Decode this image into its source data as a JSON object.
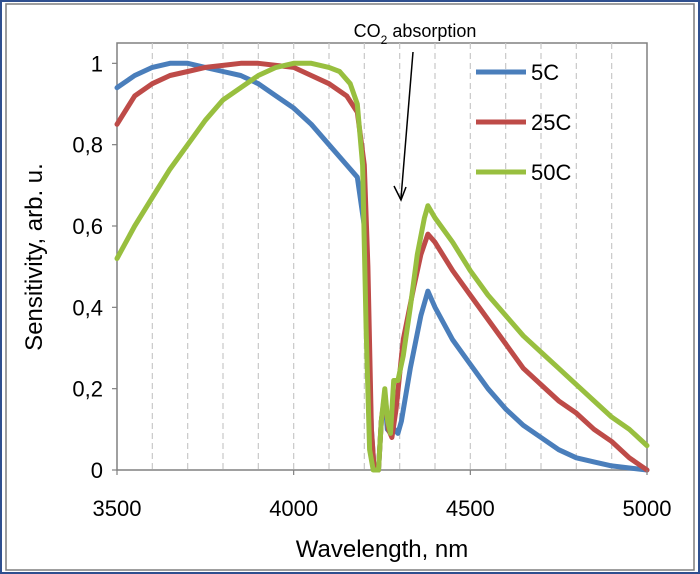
{
  "chart_data": {
    "type": "line",
    "xlabel": "Wavelength, nm",
    "ylabel": "Sensitivity, arb. u.",
    "xlim": [
      3500,
      5000
    ],
    "ylim": [
      0,
      1.05
    ],
    "x_ticks": [
      3500,
      4000,
      4500,
      5000
    ],
    "x_tick_labels": [
      "3500",
      "4000",
      "4500",
      "5000"
    ],
    "y_ticks": [
      0,
      0.2,
      0.4,
      0.6,
      0.8,
      1
    ],
    "y_tick_labels": [
      "0",
      "0,2",
      "0,4",
      "0,6",
      "0,8",
      "1"
    ],
    "x_minor_gridlines": [
      3600,
      3700,
      3800,
      3900,
      4000,
      4100,
      4200,
      4300,
      4400,
      4500,
      4600,
      4700,
      4800,
      4900
    ],
    "grid": "vertical dashed",
    "legend_position": "top-right",
    "annotation": {
      "text_prefix": "CO",
      "text_subscript": "2",
      "text_suffix": " absorption",
      "points_to_x": 4300
    },
    "series": [
      {
        "name": "5C",
        "color": "#4a7ebb",
        "points": [
          [
            3500,
            0.94
          ],
          [
            3550,
            0.97
          ],
          [
            3600,
            0.99
          ],
          [
            3650,
            1.0
          ],
          [
            3700,
            1.0
          ],
          [
            3750,
            0.99
          ],
          [
            3800,
            0.98
          ],
          [
            3850,
            0.97
          ],
          [
            3900,
            0.95
          ],
          [
            3950,
            0.92
          ],
          [
            4000,
            0.89
          ],
          [
            4050,
            0.85
          ],
          [
            4100,
            0.8
          ],
          [
            4150,
            0.75
          ],
          [
            4180,
            0.72
          ],
          [
            4200,
            0.6
          ],
          [
            4210,
            0.35
          ],
          [
            4220,
            0.1
          ],
          [
            4228,
            0.0
          ],
          [
            4240,
            0.0
          ],
          [
            4248,
            0.12
          ],
          [
            4258,
            0.18
          ],
          [
            4265,
            0.1
          ],
          [
            4275,
            0.09
          ],
          [
            4285,
            0.1
          ],
          [
            4295,
            0.09
          ],
          [
            4305,
            0.12
          ],
          [
            4330,
            0.25
          ],
          [
            4360,
            0.38
          ],
          [
            4380,
            0.44
          ],
          [
            4400,
            0.4
          ],
          [
            4450,
            0.32
          ],
          [
            4500,
            0.26
          ],
          [
            4550,
            0.2
          ],
          [
            4600,
            0.15
          ],
          [
            4650,
            0.11
          ],
          [
            4700,
            0.08
          ],
          [
            4750,
            0.05
          ],
          [
            4800,
            0.03
          ],
          [
            4850,
            0.02
          ],
          [
            4900,
            0.01
          ],
          [
            5000,
            0.0
          ]
        ]
      },
      {
        "name": "25C",
        "color": "#be4b48",
        "points": [
          [
            3500,
            0.85
          ],
          [
            3550,
            0.92
          ],
          [
            3600,
            0.95
          ],
          [
            3650,
            0.97
          ],
          [
            3700,
            0.98
          ],
          [
            3750,
            0.99
          ],
          [
            3800,
            0.995
          ],
          [
            3850,
            1.0
          ],
          [
            3900,
            1.0
          ],
          [
            3950,
            0.995
          ],
          [
            4000,
            0.99
          ],
          [
            4050,
            0.97
          ],
          [
            4100,
            0.95
          ],
          [
            4150,
            0.92
          ],
          [
            4180,
            0.88
          ],
          [
            4200,
            0.75
          ],
          [
            4210,
            0.5
          ],
          [
            4220,
            0.1
          ],
          [
            4228,
            0.0
          ],
          [
            4240,
            0.0
          ],
          [
            4248,
            0.12
          ],
          [
            4258,
            0.19
          ],
          [
            4268,
            0.1
          ],
          [
            4278,
            0.08
          ],
          [
            4290,
            0.15
          ],
          [
            4310,
            0.32
          ],
          [
            4340,
            0.45
          ],
          [
            4360,
            0.53
          ],
          [
            4380,
            0.58
          ],
          [
            4400,
            0.56
          ],
          [
            4450,
            0.49
          ],
          [
            4500,
            0.43
          ],
          [
            4550,
            0.37
          ],
          [
            4600,
            0.31
          ],
          [
            4650,
            0.25
          ],
          [
            4700,
            0.21
          ],
          [
            4750,
            0.17
          ],
          [
            4800,
            0.14
          ],
          [
            4850,
            0.1
          ],
          [
            4900,
            0.07
          ],
          [
            4950,
            0.03
          ],
          [
            5000,
            0.0
          ]
        ]
      },
      {
        "name": "50C",
        "color": "#98bf3f",
        "points": [
          [
            3500,
            0.52
          ],
          [
            3550,
            0.6
          ],
          [
            3600,
            0.67
          ],
          [
            3650,
            0.74
          ],
          [
            3700,
            0.8
          ],
          [
            3750,
            0.86
          ],
          [
            3800,
            0.91
          ],
          [
            3850,
            0.94
          ],
          [
            3900,
            0.97
          ],
          [
            3950,
            0.99
          ],
          [
            4000,
            1.0
          ],
          [
            4050,
            1.0
          ],
          [
            4100,
            0.99
          ],
          [
            4130,
            0.98
          ],
          [
            4160,
            0.95
          ],
          [
            4180,
            0.9
          ],
          [
            4195,
            0.75
          ],
          [
            4205,
            0.35
          ],
          [
            4215,
            0.05
          ],
          [
            4225,
            0.0
          ],
          [
            4240,
            0.0
          ],
          [
            4248,
            0.12
          ],
          [
            4258,
            0.2
          ],
          [
            4266,
            0.12
          ],
          [
            4274,
            0.09
          ],
          [
            4283,
            0.22
          ],
          [
            4295,
            0.22
          ],
          [
            4310,
            0.28
          ],
          [
            4330,
            0.4
          ],
          [
            4350,
            0.53
          ],
          [
            4370,
            0.62
          ],
          [
            4380,
            0.65
          ],
          [
            4400,
            0.62
          ],
          [
            4450,
            0.56
          ],
          [
            4500,
            0.49
          ],
          [
            4550,
            0.43
          ],
          [
            4600,
            0.38
          ],
          [
            4650,
            0.33
          ],
          [
            4700,
            0.29
          ],
          [
            4750,
            0.25
          ],
          [
            4800,
            0.21
          ],
          [
            4850,
            0.17
          ],
          [
            4900,
            0.13
          ],
          [
            4950,
            0.1
          ],
          [
            5000,
            0.06
          ]
        ]
      }
    ]
  }
}
